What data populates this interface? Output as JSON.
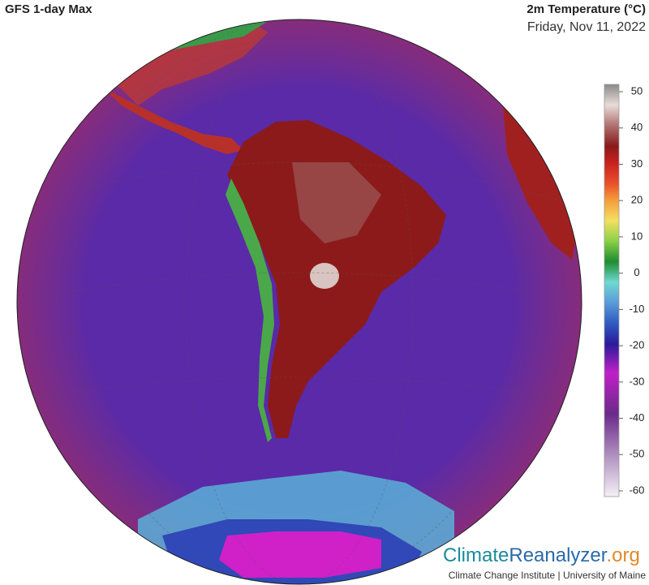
{
  "header": {
    "title": "GFS 1-day Max",
    "variable": "2m Temperature (°C)",
    "date": "Friday, Nov 11, 2022"
  },
  "colorbar": {
    "ticks": [
      50,
      40,
      30,
      20,
      10,
      0,
      -10,
      -20,
      -30,
      -40,
      -50,
      -60
    ]
  },
  "footer": {
    "logo_part1": "Climate",
    "logo_part2": "Reanalyzer",
    "logo_part3": ".org",
    "credit": "Climate Change Institute | University of Maine"
  }
}
